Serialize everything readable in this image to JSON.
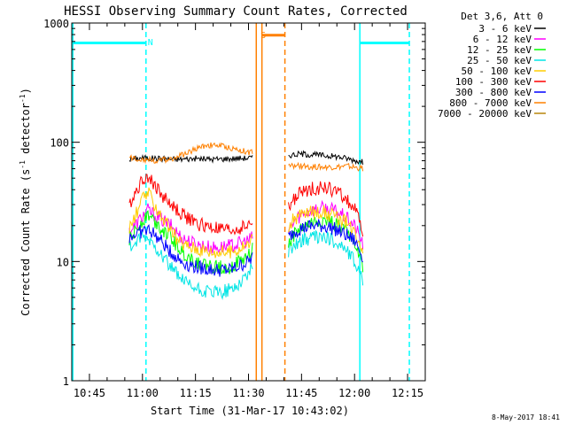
{
  "chart_data": {
    "type": "line",
    "title": "HESSI Observing Summary Count Rates, Corrected",
    "xlabel": "Start Time (31-Mar-17 10:43:02)",
    "ylabel": "Corrected Count Rate (s⁻¹ detector⁻¹)",
    "ylabel_parts": {
      "main": "Corrected Count Rate (s",
      "sup1": "-1",
      "mid": " detector",
      "sup2": "-1",
      "end": ")"
    },
    "xlim_minutes": [
      640,
      740
    ],
    "ylim": [
      1,
      1000
    ],
    "yscale": "log",
    "x_ticks": [
      {
        "minute": 645,
        "label": "10:45"
      },
      {
        "minute": 660,
        "label": "11:00"
      },
      {
        "minute": 675,
        "label": "11:15"
      },
      {
        "minute": 690,
        "label": "11:30"
      },
      {
        "minute": 705,
        "label": "11:45"
      },
      {
        "minute": 720,
        "label": "12:00"
      },
      {
        "minute": 735,
        "label": "12:15"
      }
    ],
    "y_ticks": [
      {
        "value": 1,
        "label": "1"
      },
      {
        "value": 10,
        "label": "10"
      },
      {
        "value": 100,
        "label": "100"
      },
      {
        "value": 1000,
        "label": "1000"
      }
    ],
    "legend_header": "Det 3,6, Att 0",
    "series": [
      {
        "name": "3 - 6 keV",
        "color": "#000000",
        "segments": [
          {
            "x": [
              656.3,
              660,
              665,
              670,
              675,
              680,
              685,
              690.5,
              691.2
            ],
            "y": [
              72,
              74,
              73,
              72,
              73,
              72,
              73,
              74,
              74
            ]
          },
          {
            "x": [
              701.3,
              705,
              710,
              715,
              718,
              722.4
            ],
            "y": [
              78,
              80,
              78,
              76,
              73,
              68
            ]
          }
        ]
      },
      {
        "name": "6 - 12 keV",
        "color": "#ff00ff",
        "segments": [
          {
            "x": [
              656.3,
              658,
              660,
              661.5,
              664,
              668,
              671,
              675,
              680,
              685,
              690,
              691.2
            ],
            "y": [
              18,
              20,
              24,
              27,
              24,
              20,
              16,
              14,
              13,
              13.5,
              15,
              16
            ]
          },
          {
            "x": [
              701.3,
              703,
              705,
              708,
              711,
              714,
              717,
              720,
              722.4
            ],
            "y": [
              18,
              22,
              25,
              27,
              28,
              27,
              24,
              20,
              14
            ]
          }
        ]
      },
      {
        "name": "12 - 25 keV",
        "color": "#00ff00",
        "segments": [
          {
            "x": [
              656.3,
              658,
              660,
              661.5,
              664,
              668,
              671,
              675,
              680,
              685,
              690,
              691.2
            ],
            "y": [
              15,
              18,
              22,
              25,
              21,
              16,
              12,
              10,
              9,
              9,
              11,
              13
            ]
          },
          {
            "x": [
              701.3,
              703,
              705,
              708,
              711,
              714,
              717,
              720,
              722.4
            ],
            "y": [
              14,
              17,
              19,
              21,
              22,
              21,
              19,
              15,
              9
            ]
          }
        ]
      },
      {
        "name": "25 - 50 keV",
        "color": "#00e5e5",
        "segments": [
          {
            "x": [
              656.3,
              658,
              660,
              662,
              665,
              668,
              671,
              674,
              678,
              682,
              686,
              690,
              691.2
            ],
            "y": [
              13,
              14,
              16,
              15,
              12,
              9,
              7,
              6,
              5.5,
              5.5,
              6,
              8,
              9
            ]
          },
          {
            "x": [
              701.3,
              703,
              705,
              708,
              711,
              714,
              717,
              720,
              722.4
            ],
            "y": [
              12,
              14,
              15,
              16,
              16,
              15,
              13,
              10,
              7
            ]
          }
        ]
      },
      {
        "name": "50 - 100 keV",
        "color": "#ffcc00",
        "segments": [
          {
            "x": [
              656.3,
              658,
              660,
              661.5,
              664,
              668,
              671,
              675,
              680,
              685,
              690,
              691.2
            ],
            "y": [
              19,
              24,
              33,
              38,
              28,
              18,
              14,
              13,
              12,
              12,
              14,
              15
            ]
          },
          {
            "x": [
              701.3,
              703,
              705,
              708,
              711,
              714,
              717,
              720,
              722.4
            ],
            "y": [
              20,
              23,
              25,
              26,
              26,
              24,
              22,
              18,
              13
            ]
          }
        ]
      },
      {
        "name": "100 - 300 keV",
        "color": "#ff0000",
        "segments": [
          {
            "x": [
              656.3,
              658,
              660,
              661.5,
              663,
              666,
              669,
              672,
              675,
              680,
              685,
              690,
              691.2
            ],
            "y": [
              30,
              38,
              48,
              53,
              45,
              35,
              28,
              24,
              21,
              19,
              18,
              20,
              22
            ]
          },
          {
            "x": [
              701.3,
              703,
              705,
              708,
              711,
              714,
              717,
              720,
              722.4
            ],
            "y": [
              28,
              34,
              38,
              41,
              42,
              40,
              35,
              28,
              18
            ]
          }
        ]
      },
      {
        "name": "300 - 800 keV",
        "color": "#0000ff",
        "segments": [
          {
            "x": [
              656.3,
              658,
              660,
              662,
              665,
              668,
              671,
              675,
              680,
              685,
              690,
              691.2
            ],
            "y": [
              16,
              17,
              18,
              18.5,
              15,
              12,
              10,
              9,
              8.5,
              8.5,
              10,
              11
            ]
          },
          {
            "x": [
              701.3,
              703,
              705,
              708,
              711,
              714,
              717,
              720,
              722.4
            ],
            "y": [
              16,
              18,
              19,
              20,
              20,
              19,
              17,
              15,
              11
            ]
          }
        ]
      },
      {
        "name": "800 - 7000 keV",
        "color": "#ff8000",
        "segments": [
          {
            "x": [
              656.3,
              660,
              665,
              670,
              675,
              678,
              682,
              686,
              690.5,
              691.2
            ],
            "y": [
              74,
              72,
              70,
              75,
              88,
              95,
              94,
              88,
              82,
              82
            ]
          },
          {
            "x": [
              701.3,
              705,
              710,
              715,
              718,
              722.4
            ],
            "y": [
              63,
              63,
              62,
              62,
              63,
              60
            ]
          }
        ]
      },
      {
        "name": "7000 - 20000 keV",
        "color": "#b8860b",
        "segments": []
      }
    ],
    "annotations": [
      {
        "text": "N",
        "color": "#00ffff",
        "minute": 661.5,
        "value": 700
      },
      {
        "text": "S",
        "color": "#ff8000",
        "minute": 693.4,
        "value": 800
      }
    ],
    "flag_bars": [
      {
        "color": "#00ffff",
        "x": [
          640,
          661
        ],
        "value": 680
      },
      {
        "color": "#ff8000",
        "x": [
          693.8,
          700.3
        ],
        "value": 790
      },
      {
        "color": "#00ffff",
        "x": [
          721.5,
          735.5
        ],
        "value": 680
      }
    ],
    "flag_lines": [
      {
        "color": "#00ffff",
        "minute": 661,
        "style": "dashed"
      },
      {
        "color": "#00ffff",
        "minute": 735.5,
        "style": "dashed"
      },
      {
        "color": "#00ffff",
        "minute": 721.5,
        "style": "solid"
      },
      {
        "color": "#00ffff",
        "minute": 640.3,
        "style": "solid"
      },
      {
        "color": "#ff8000",
        "minute": 692.2,
        "style": "solid"
      },
      {
        "color": "#ff8000",
        "minute": 693.8,
        "style": "solid"
      },
      {
        "color": "#ff8000",
        "minute": 700.3,
        "style": "dashed"
      }
    ]
  },
  "footer_stamp": "8-May-2017 18:41"
}
